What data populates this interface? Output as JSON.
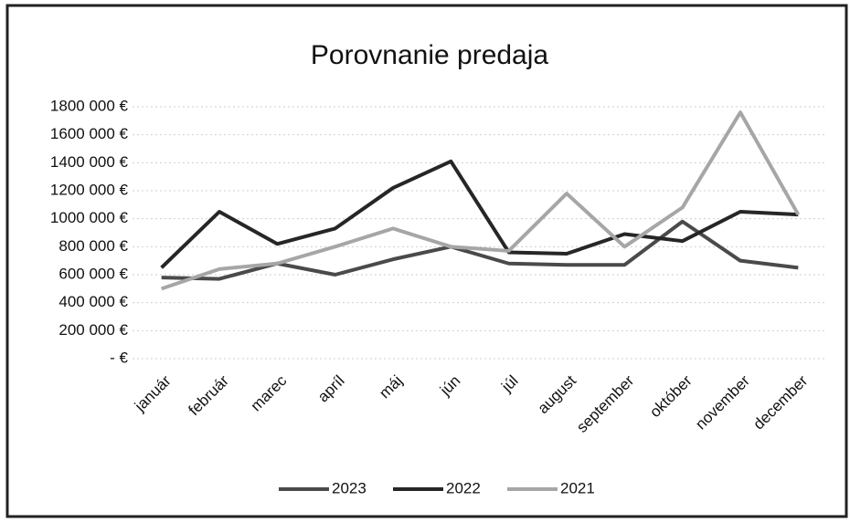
{
  "chart_data": {
    "type": "line",
    "title": "Porovnanie predaja",
    "categories": [
      "január",
      "február",
      "marec",
      "apríl",
      "máj",
      "jún",
      "júl",
      "august",
      "september",
      "október",
      "november",
      "december"
    ],
    "series": [
      {
        "name": "2023",
        "color": "#4a4a4a",
        "values": [
          580000,
          570000,
          680000,
          600000,
          710000,
          800000,
          680000,
          670000,
          670000,
          980000,
          700000,
          650000
        ]
      },
      {
        "name": "2022",
        "color": "#262626",
        "values": [
          650000,
          1050000,
          820000,
          930000,
          1220000,
          1410000,
          760000,
          750000,
          890000,
          840000,
          1050000,
          1030000
        ]
      },
      {
        "name": "2021",
        "color": "#a6a6a6",
        "values": [
          500000,
          640000,
          680000,
          800000,
          930000,
          800000,
          770000,
          1180000,
          800000,
          1080000,
          1760000,
          1030000
        ]
      }
    ],
    "ylim": [
      0,
      1800000
    ],
    "yticks": [
      {
        "value": 0,
        "label": "- €"
      },
      {
        "value": 200000,
        "label": "200 000 €"
      },
      {
        "value": 400000,
        "label": "400 000 €"
      },
      {
        "value": 600000,
        "label": "600 000 €"
      },
      {
        "value": 800000,
        "label": "800 000 €"
      },
      {
        "value": 1000000,
        "label": "1000 000 €"
      },
      {
        "value": 1200000,
        "label": "1200 000 €"
      },
      {
        "value": 1400000,
        "label": "1400 000 €"
      },
      {
        "value": 1600000,
        "label": "1600 000 €"
      },
      {
        "value": 1800000,
        "label": "1800 000 €"
      }
    ],
    "grid": true
  }
}
